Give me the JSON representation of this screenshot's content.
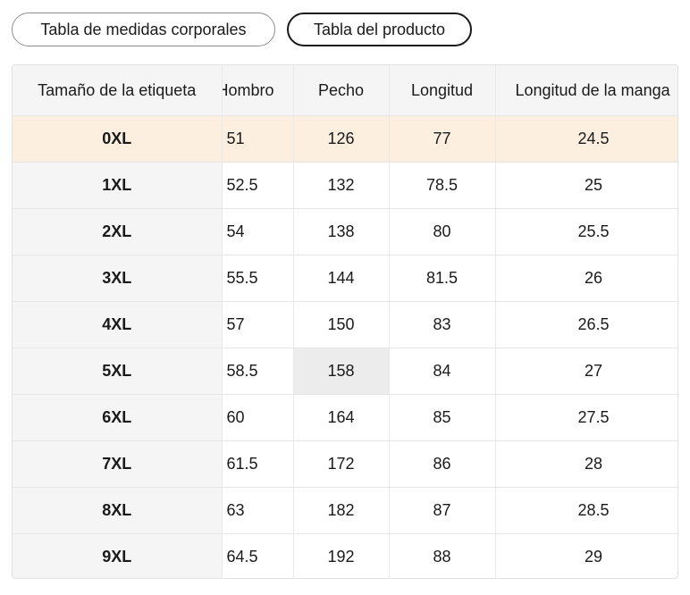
{
  "tabs": [
    {
      "label": "Tabla de medidas corporales",
      "active": false
    },
    {
      "label": "Tabla del producto",
      "active": true
    }
  ],
  "table": {
    "headers": [
      "Tamaño de la etiqueta",
      "Hombro",
      "Pecho",
      "Longitud",
      "Longitud de la manga"
    ],
    "rows": [
      [
        "0XL",
        "51",
        "126",
        "77",
        "24.5"
      ],
      [
        "1XL",
        "52.5",
        "132",
        "78.5",
        "25"
      ],
      [
        "2XL",
        "54",
        "138",
        "80",
        "25.5"
      ],
      [
        "3XL",
        "55.5",
        "144",
        "81.5",
        "26"
      ],
      [
        "4XL",
        "57",
        "150",
        "83",
        "26.5"
      ],
      [
        "5XL",
        "58.5",
        "158",
        "84",
        "27"
      ],
      [
        "6XL",
        "60",
        "164",
        "85",
        "27.5"
      ],
      [
        "7XL",
        "61.5",
        "172",
        "86",
        "28"
      ],
      [
        "8XL",
        "63",
        "182",
        "87",
        "28.5"
      ],
      [
        "9XL",
        "64.5",
        "192",
        "88",
        "29"
      ]
    ],
    "highlight_row_color": "#fdefe0"
  }
}
